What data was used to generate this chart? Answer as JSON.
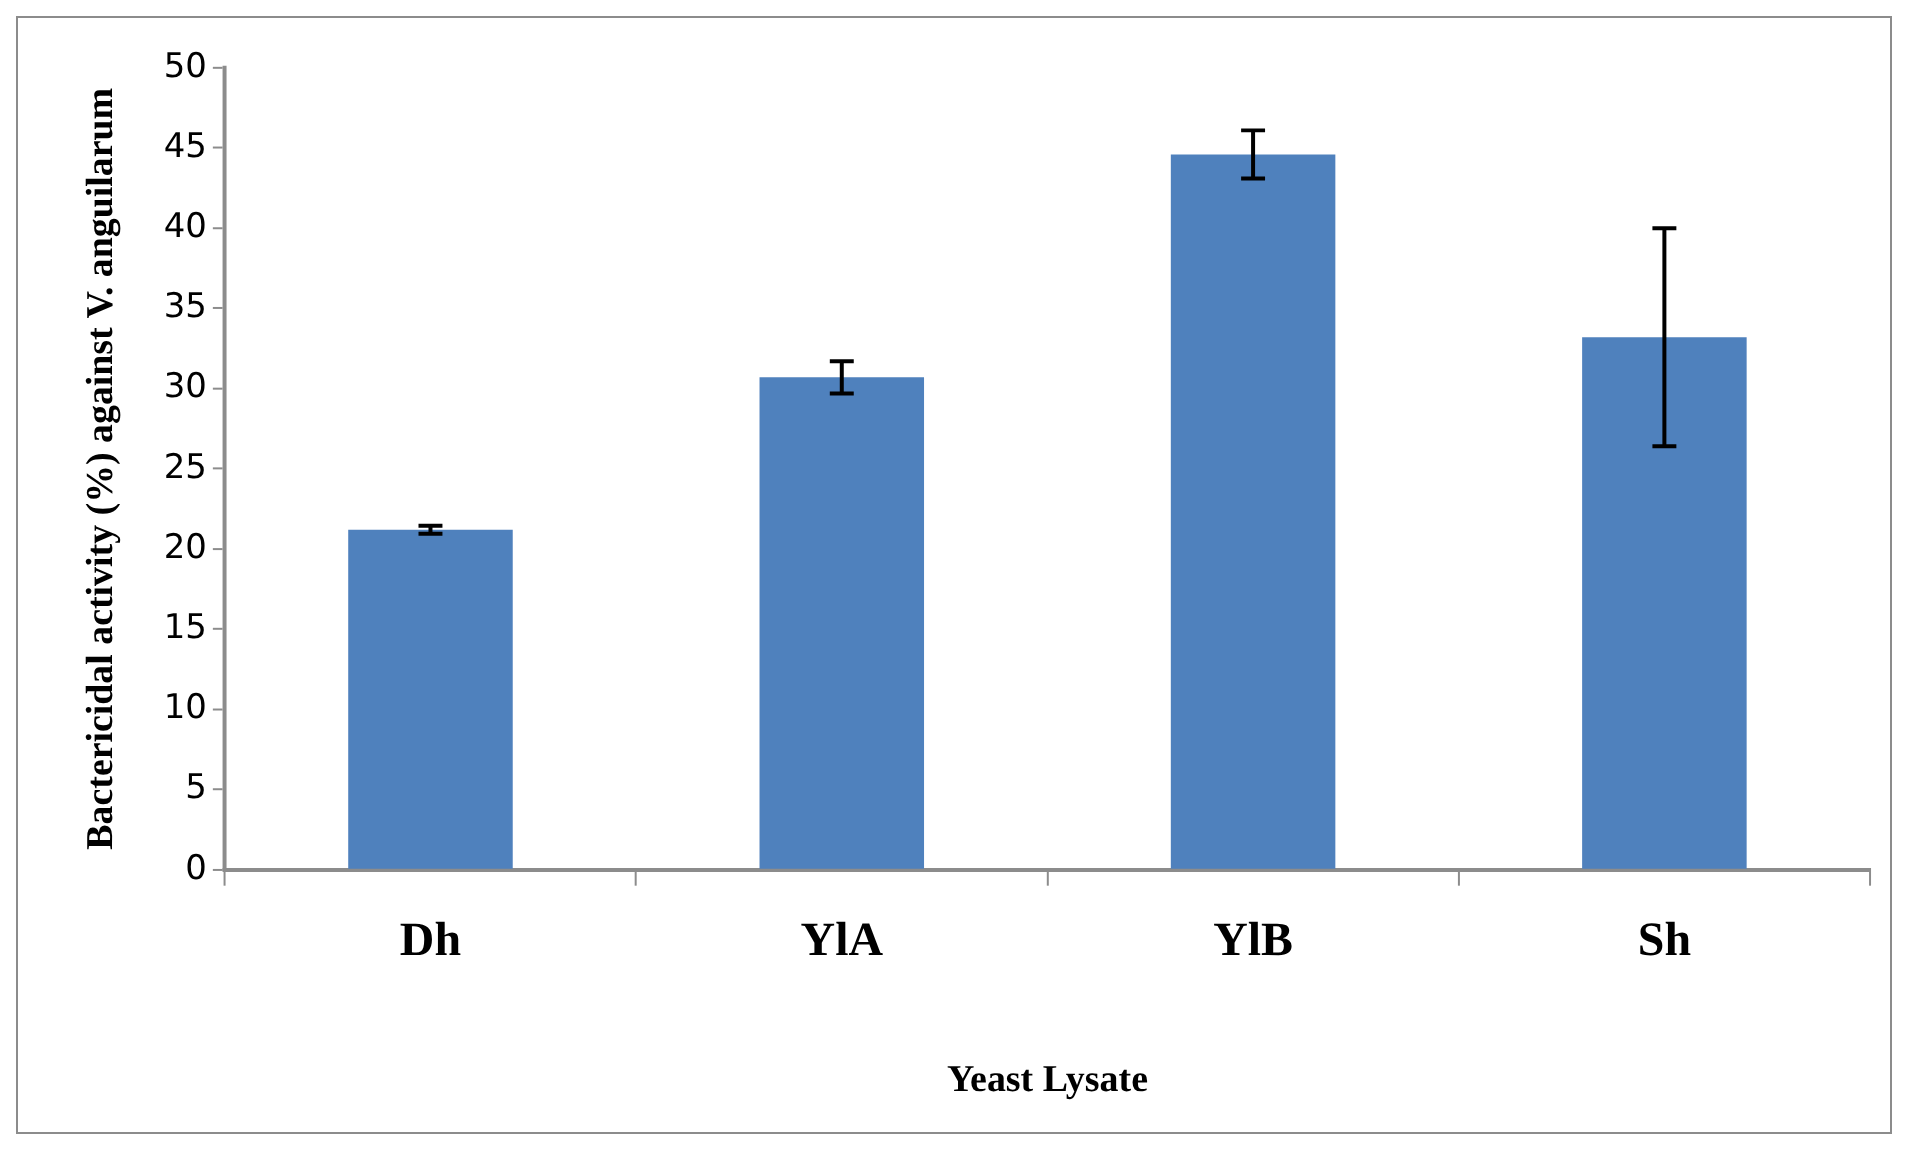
{
  "chart_data": {
    "type": "bar",
    "xlabel": "Yeast Lysate",
    "ylabel": "Bactericidal activity (%) against V. anguilarum",
    "categories": [
      "Dh",
      "YlA",
      "YlB",
      "Sh"
    ],
    "values": [
      21.2,
      30.7,
      44.6,
      33.2
    ],
    "errors": [
      0.25,
      1.0,
      1.5,
      6.8
    ],
    "color": "#4f81bd",
    "ylim": [
      0,
      50
    ],
    "yticks": [
      0,
      5,
      10,
      15,
      20,
      25,
      30,
      35,
      40,
      45,
      50
    ],
    "grid": false,
    "legend": false
  }
}
